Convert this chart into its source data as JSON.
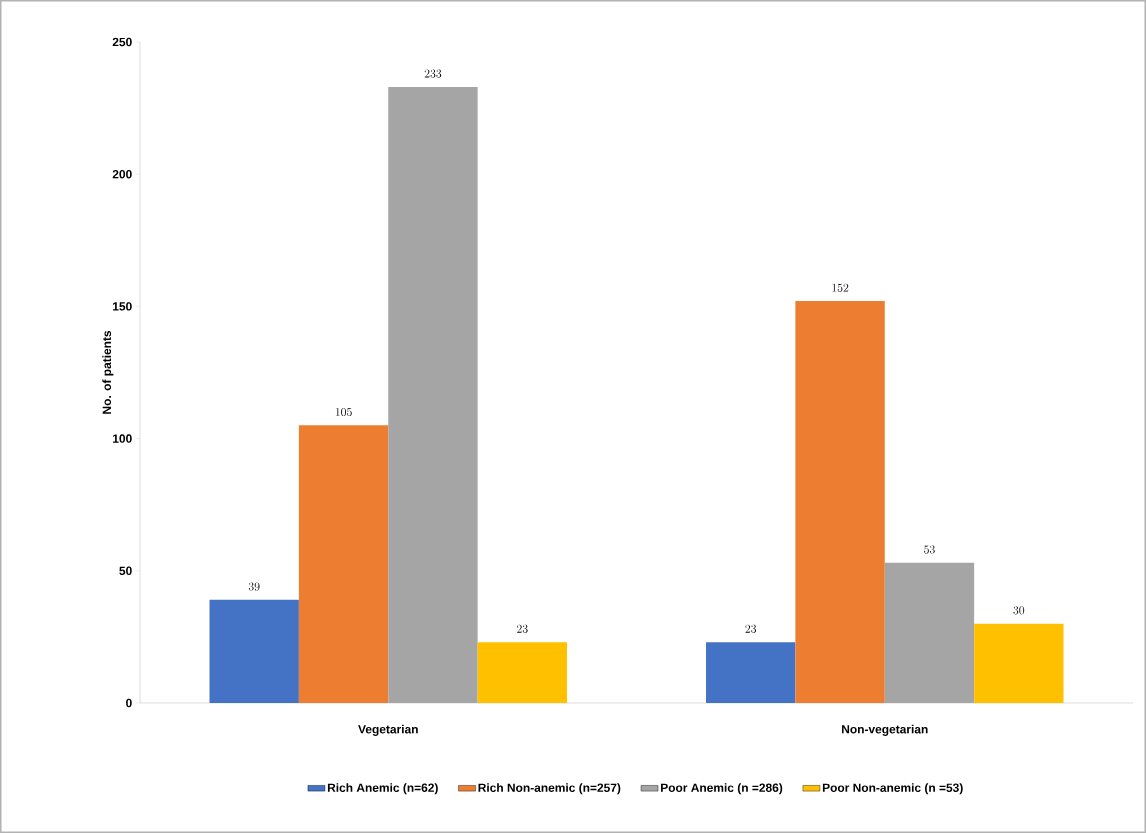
{
  "chart_data": {
    "type": "bar",
    "ylabel": "No. of patients",
    "categories": [
      "Vegetarian",
      "Non-vegetarian"
    ],
    "series": [
      {
        "name": "Rich Anemic (n=62)",
        "color": "#4472c4",
        "values": [
          39,
          23
        ]
      },
      {
        "name": "Rich Non-anemic (n=257)",
        "color": "#ed7d31",
        "values": [
          105,
          152
        ]
      },
      {
        "name": "Poor Anemic (n =286)",
        "color": "#a5a5a5",
        "values": [
          233,
          53
        ]
      },
      {
        "name": "Poor Non-anemic (n =53)",
        "color": "#ffc000",
        "values": [
          23,
          30
        ]
      }
    ],
    "ylim": [
      0,
      250
    ],
    "yticks": [
      0,
      50,
      100,
      150,
      200,
      250
    ],
    "data_labels": true,
    "legend": "bottom",
    "grid": false
  }
}
